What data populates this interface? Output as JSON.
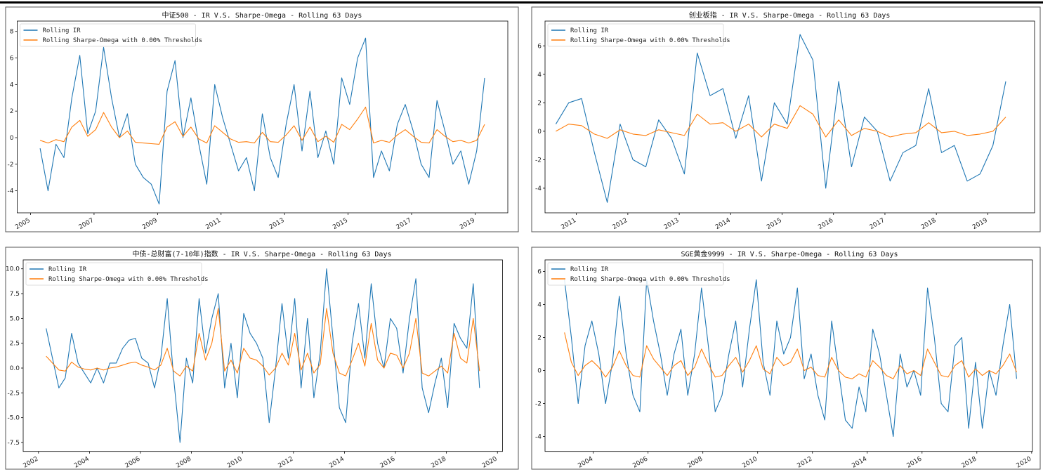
{
  "legend": {
    "ir": "Rolling IR",
    "so": "Rolling Sharpe-Omega with 0.00% Thresholds"
  },
  "colors": {
    "ir": "#1f77b4",
    "so": "#ff7f0e"
  },
  "chart_data": [
    {
      "type": "line",
      "title": "中证500 - IR V.S. Sharpe-Omega - Rolling 63 Days",
      "xlim": [
        2004.58,
        2020.03
      ],
      "ylim": [
        -5.66,
        8.78
      ],
      "xticks": [
        2005,
        2007,
        2009,
        2011,
        2013,
        2015,
        2017,
        2019
      ],
      "yticks": [
        -4,
        -2,
        0,
        2,
        4,
        6,
        8
      ],
      "ytick_decimals": 0,
      "x_start": 2005.3,
      "x_step": 0.25,
      "series": [
        {
          "name": "Rolling IR",
          "values": [
            -0.8,
            -4,
            -0.5,
            -1.5,
            3,
            6.2,
            0.3,
            2,
            6.8,
            3,
            0,
            1.8,
            -2,
            -3,
            -3.5,
            -5,
            3.5,
            5.8,
            0,
            3,
            -0.5,
            -3.5,
            4,
            1.5,
            -0.5,
            -2.5,
            -1.5,
            -4,
            1.8,
            -1.5,
            -3,
            1,
            4,
            -1,
            3.5,
            -1.5,
            0.5,
            -2,
            4.5,
            2.5,
            6,
            7.5,
            -3,
            -1,
            -2.5,
            1,
            2.5,
            0.5,
            -2,
            -3,
            2.8,
            0.5,
            -2,
            -1,
            -3.5,
            -1,
            4.5
          ]
        },
        {
          "name": "Rolling Sharpe-Omega with 0.00% Thresholds",
          "values": [
            -0.2,
            -0.4,
            -0.15,
            -0.3,
            0.8,
            1.3,
            0.1,
            0.6,
            1.9,
            0.8,
            0,
            0.5,
            -0.35,
            -0.4,
            -0.45,
            -0.5,
            0.8,
            1.2,
            0.1,
            0.8,
            -0.1,
            -0.4,
            0.9,
            0.4,
            -0.1,
            -0.35,
            -0.3,
            -0.4,
            0.4,
            -0.3,
            -0.35,
            0.2,
            0.9,
            -0.2,
            0.8,
            -0.3,
            0.1,
            -0.35,
            1,
            0.6,
            1.4,
            2.3,
            -0.4,
            -0.2,
            -0.35,
            0.2,
            0.6,
            0.1,
            -0.35,
            -0.4,
            0.6,
            0.1,
            -0.3,
            -0.2,
            -0.4,
            -0.2,
            1
          ]
        }
      ]
    },
    {
      "type": "line",
      "title": "创业板指 - IR V.S. Sharpe-Omega - Rolling 63 Days",
      "xlim": [
        2010.39,
        2019.91
      ],
      "ylim": [
        -5.73,
        7.74
      ],
      "xticks": [
        2011,
        2012,
        2013,
        2014,
        2015,
        2016,
        2017,
        2018,
        2019
      ],
      "yticks": [
        -4,
        -2,
        0,
        2,
        4,
        6
      ],
      "ytick_decimals": 0,
      "x_start": 2010.6,
      "x_step": 0.25,
      "series": [
        {
          "name": "Rolling IR",
          "values": [
            0.5,
            2,
            2.3,
            -1.5,
            -5,
            0.5,
            -2,
            -2.5,
            0.8,
            -0.5,
            -3,
            5.5,
            2.5,
            3,
            -0.5,
            2.5,
            -3.5,
            2,
            0.5,
            6.8,
            5,
            -4,
            3.5,
            -2.5,
            1,
            0,
            -3.5,
            -1.5,
            -1,
            3,
            -1.5,
            -1,
            -3.5,
            -3,
            -1,
            3.5
          ]
        },
        {
          "name": "Rolling Sharpe-Omega with 0.00% Thresholds",
          "values": [
            0,
            0.5,
            0.4,
            -0.2,
            -0.5,
            0.1,
            -0.2,
            -0.3,
            0.1,
            -0.1,
            -0.3,
            1.2,
            0.5,
            0.6,
            0,
            0.5,
            -0.4,
            0.5,
            0.2,
            1.8,
            1.2,
            -0.4,
            0.8,
            -0.3,
            0.2,
            0,
            -0.4,
            -0.2,
            -0.1,
            0.6,
            -0.1,
            0,
            -0.3,
            -0.2,
            0,
            1
          ]
        }
      ]
    },
    {
      "type": "line",
      "title": "中债-总财富(7-10年)指数 - IR V.S. Sharpe-Omega - Rolling 63 Days",
      "xlim": [
        2001.4,
        2020.2
      ],
      "ylim": [
        -8.4,
        10.9
      ],
      "xticks": [
        2002,
        2004,
        2006,
        2008,
        2010,
        2012,
        2014,
        2016,
        2018,
        2020
      ],
      "yticks": [
        -7.5,
        -5,
        -2.5,
        0,
        2.5,
        5,
        7.5,
        10
      ],
      "ytick_decimals": 1,
      "x_start": 2002.3,
      "x_step": 0.25,
      "series": [
        {
          "name": "Rolling IR",
          "values": [
            4,
            1,
            -2,
            -1,
            3.5,
            0.5,
            -0.5,
            -1.5,
            0,
            -1.5,
            0.5,
            0.5,
            2,
            2.8,
            3,
            1,
            0.5,
            -2,
            1,
            7,
            -1,
            -7.5,
            1,
            -1.5,
            7,
            1.5,
            5,
            7.5,
            -2,
            2.5,
            -3,
            5.5,
            3.5,
            2.5,
            1,
            -5.5,
            0,
            6.5,
            1,
            7,
            -2,
            5,
            -3,
            1.5,
            10,
            3,
            -4,
            -5.5,
            2.5,
            6.5,
            1,
            8.5,
            2.5,
            0,
            5,
            4,
            -0.5,
            5,
            9,
            -2,
            -4.5,
            -1.5,
            1,
            -4,
            4.5,
            3,
            2,
            8.5,
            -2
          ]
        },
        {
          "name": "Rolling Sharpe-Omega with 0.00% Thresholds",
          "values": [
            1.2,
            0.5,
            -0.2,
            -0.3,
            0.6,
            0.1,
            -0.1,
            -0.2,
            0,
            -0.2,
            0,
            0.1,
            0.3,
            0.5,
            0.6,
            0.3,
            0.1,
            -0.2,
            0.3,
            2,
            -0.3,
            -0.8,
            0.2,
            -0.3,
            3.5,
            0.8,
            2.5,
            6,
            -0.3,
            0.8,
            -0.5,
            2,
            1,
            0.8,
            0.2,
            -0.7,
            0,
            1.5,
            0.3,
            3.5,
            -0.2,
            1.5,
            -0.5,
            0.4,
            6,
            1.5,
            -0.5,
            -0.8,
            0.8,
            2.5,
            0.2,
            4.5,
            0.8,
            0,
            1.5,
            1.3,
            0,
            1.5,
            5,
            -0.5,
            -0.8,
            -0.3,
            0.2,
            -0.5,
            3.5,
            1,
            0.5,
            5,
            -0.3
          ]
        }
      ]
    },
    {
      "type": "line",
      "title": "SGE黄金9999 - IR V.S. Sharpe-Omega - Rolling 63 Days",
      "xlim": [
        2002.24,
        2020.03
      ],
      "ylim": [
        -4.9,
        6.7
      ],
      "xticks": [
        2004,
        2006,
        2008,
        2010,
        2012,
        2014,
        2016,
        2018,
        2020
      ],
      "yticks": [
        -4,
        -2,
        0,
        2,
        4,
        6
      ],
      "ytick_decimals": 0,
      "x_start": 2002.95,
      "x_step": 0.25,
      "series": [
        {
          "name": "Rolling IR",
          "values": [
            5.5,
            2,
            -2,
            1.5,
            3,
            1,
            -2,
            0.5,
            4.5,
            1,
            -1.5,
            -2.5,
            5.5,
            3,
            1,
            -1.5,
            1,
            2.5,
            -1.5,
            1,
            5,
            1.5,
            -2.5,
            -1.5,
            1,
            3,
            -1,
            2.5,
            5.5,
            0.5,
            -1.5,
            3,
            1,
            2,
            5,
            -0.5,
            1,
            -1.5,
            -3,
            3,
            0,
            -3,
            -3.5,
            -1,
            -2.5,
            2.5,
            1,
            -1.5,
            -4,
            1,
            -1,
            0,
            -1.5,
            5,
            2,
            -2,
            -2.5,
            1.5,
            2,
            -3.5,
            0.5,
            -3.5,
            0,
            -1.5,
            1.5,
            4,
            -0.5
          ]
        },
        {
          "name": "Rolling Sharpe-Omega with 0.00% Thresholds",
          "values": [
            2.3,
            0.5,
            -0.3,
            0.3,
            0.6,
            0.2,
            -0.4,
            0.2,
            1.2,
            0.3,
            -0.3,
            -0.4,
            1.5,
            0.7,
            0.2,
            -0.3,
            0.3,
            0.6,
            -0.3,
            0.2,
            1.3,
            0.4,
            -0.4,
            -0.3,
            0.3,
            0.8,
            -0.1,
            0.6,
            1.5,
            0.1,
            -0.2,
            0.8,
            0.3,
            0.5,
            1.3,
            0,
            0.2,
            -0.3,
            -0.4,
            0.8,
            0,
            -0.4,
            -0.5,
            -0.2,
            -0.4,
            0.6,
            0.2,
            -0.3,
            -0.5,
            0.3,
            -0.2,
            0,
            -0.3,
            1.3,
            0.5,
            -0.3,
            -0.4,
            0.3,
            0.6,
            -0.4,
            0.1,
            -0.3,
            0,
            -0.2,
            0.3,
            1,
            -0.1
          ]
        }
      ]
    }
  ]
}
